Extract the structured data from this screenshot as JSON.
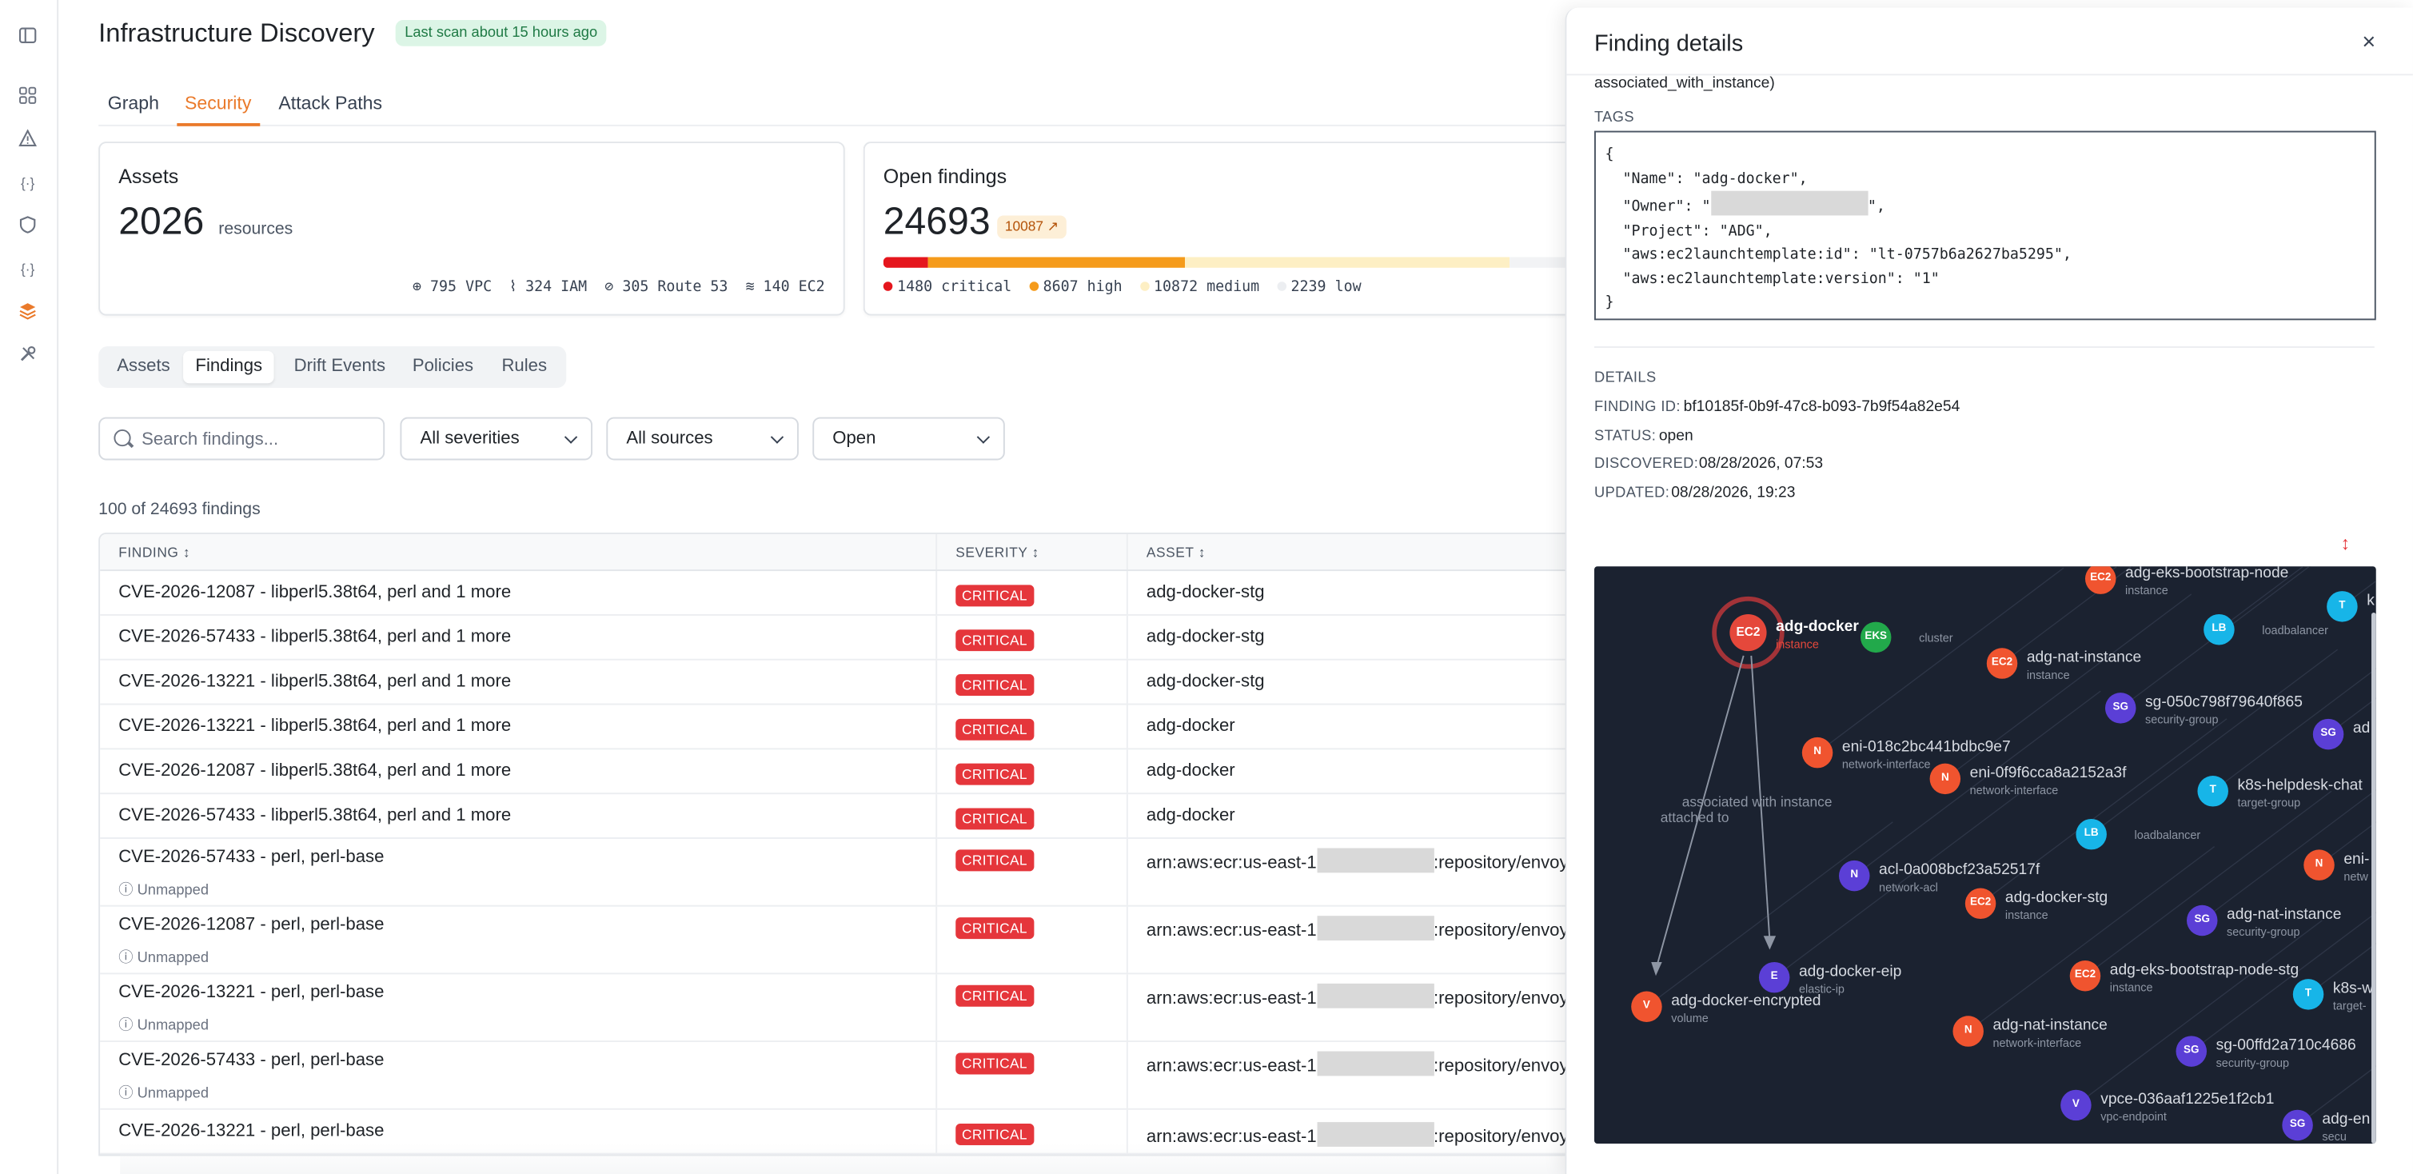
{
  "rail": {
    "icons": [
      "sidebar-toggle-icon",
      "grid-icon",
      "alert-icon",
      "code-icon",
      "shield-icon",
      "code-icon",
      "layers-icon",
      "tools-icon"
    ]
  },
  "header": {
    "title": "Infrastructure Discovery",
    "scan_badge": "Last scan about 15 hours ago"
  },
  "tabs": [
    {
      "label": "Graph"
    },
    {
      "label": "Security"
    },
    {
      "label": "Attack Paths"
    }
  ],
  "assets_card": {
    "title": "Assets",
    "count": "2026",
    "unit": "resources",
    "stats": [
      {
        "icon": "globe-icon",
        "text": "795 VPC"
      },
      {
        "icon": "activity-icon",
        "text": "324 IAM"
      },
      {
        "icon": "route-icon",
        "text": "305 Route 53"
      },
      {
        "icon": "layers-icon",
        "text": "140 EC2"
      }
    ]
  },
  "findings_card": {
    "title": "Open findings",
    "count": "24693",
    "badge": "10087 ↗",
    "critical": "1480 critical",
    "high": "8607 high",
    "medium": "10872 medium",
    "low": "2239 low",
    "bar": {
      "critical": 1480,
      "high": 8607,
      "medium": 10872,
      "low": 2239
    }
  },
  "subtabs": [
    {
      "label": "Assets"
    },
    {
      "label": "Findings"
    },
    {
      "label": "Drift Events"
    },
    {
      "label": "Policies"
    },
    {
      "label": "Rules"
    }
  ],
  "filters": {
    "search_placeholder": "Search findings...",
    "severity": "All severities",
    "source": "All sources",
    "status": "Open"
  },
  "results_count": "100 of 24693 findings",
  "table": {
    "headers": {
      "finding": "FINDING",
      "severity": "SEVERITY",
      "asset": "ASSET"
    },
    "rows": [
      {
        "finding": "CVE-2026-12087 - libperl5.38t64, perl and 1 more",
        "severity": "CRITICAL",
        "asset": "adg-docker-stg"
      },
      {
        "finding": "CVE-2026-57433 - libperl5.38t64, perl and 1 more",
        "severity": "CRITICAL",
        "asset": "adg-docker-stg"
      },
      {
        "finding": "CVE-2026-13221 - libperl5.38t64, perl and 1 more",
        "severity": "CRITICAL",
        "asset": "adg-docker-stg"
      },
      {
        "finding": "CVE-2026-13221 - libperl5.38t64, perl and 1 more",
        "severity": "CRITICAL",
        "asset": "adg-docker"
      },
      {
        "finding": "CVE-2026-12087 - libperl5.38t64, perl and 1 more",
        "severity": "CRITICAL",
        "asset": "adg-docker"
      },
      {
        "finding": "CVE-2026-57433 - libperl5.38t64, perl and 1 more",
        "severity": "CRITICAL",
        "asset": "adg-docker"
      },
      {
        "finding": "CVE-2026-57433 - perl, perl-base",
        "sub": "Unmapped",
        "severity": "CRITICAL",
        "asset_prefix": "arn:aws:ecr:us-east-1",
        "asset_suffix": ":repository/envoy"
      },
      {
        "finding": "CVE-2026-12087 - perl, perl-base",
        "sub": "Unmapped",
        "severity": "CRITICAL",
        "asset_prefix": "arn:aws:ecr:us-east-1",
        "asset_suffix": ":repository/envoy"
      },
      {
        "finding": "CVE-2026-13221 - perl, perl-base",
        "sub": "Unmapped",
        "severity": "CRITICAL",
        "asset_prefix": "arn:aws:ecr:us-east-1",
        "asset_suffix": ":repository/envoy"
      },
      {
        "finding": "CVE-2026-57433 - perl, perl-base",
        "sub": "Unmapped",
        "severity": "CRITICAL",
        "asset_prefix": "arn:aws:ecr:us-east-1",
        "asset_suffix": ":repository/envoy"
      },
      {
        "finding": "CVE-2026-13221 - perl, perl-base",
        "severity": "CRITICAL",
        "asset_prefix": "arn:aws:ecr:us-east-1",
        "asset_suffix": ":repository/envoy"
      }
    ]
  },
  "panel": {
    "title": "Finding details",
    "close": "×",
    "relationship_tail": "associated_with_instance)",
    "tags_label": "TAGS",
    "tags_lines": [
      "{",
      "  \"Name\": \"adg-docker\",",
      "  \"Owner\": \"",
      "  \"Project\": \"ADG\",",
      "  \"aws:ec2launchtemplate:id\": \"lt-0757b6a2627ba5295\",",
      "  \"aws:ec2launchtemplate:version\": \"1\"",
      "}"
    ],
    "owner_suffix": "\",",
    "details_label": "DETAILS",
    "finding_id_label": "FINDING ID:",
    "finding_id": "bf10185f-0b9f-47c8-b093-7b9f54a82e54",
    "status_label": "STATUS:",
    "status": "open",
    "discovered_label": "DISCOVERED:",
    "discovered": "08/28/2026, 07:53",
    "updated_label": "UPDATED:",
    "updated": "08/28/2026, 19:23",
    "resize_glyph": "↕"
  },
  "graph": {
    "edge_labels": [
      "associated with instance",
      "attached to"
    ],
    "nodes": [
      {
        "abbr": "EC2",
        "label": "adg-docker",
        "sub": "instance",
        "color": "#e5483b"
      },
      {
        "abbr": "EKS",
        "label": "",
        "sub": "cluster",
        "color": "#22a94b"
      },
      {
        "abbr": "EC2",
        "label": "adg-eks-bootstrap-node",
        "sub": "instance",
        "color": "#f0542f"
      },
      {
        "abbr": "T",
        "label": "k",
        "sub": "",
        "color": "#17b5e8"
      },
      {
        "abbr": "LB",
        "label": "",
        "sub": "loadbalancer",
        "color": "#17b5e8"
      },
      {
        "abbr": "EC2",
        "label": "adg-nat-instance",
        "sub": "instance",
        "color": "#f0542f"
      },
      {
        "abbr": "SG",
        "label": "sg-050c798f79640f865",
        "sub": "security-group",
        "color": "#5b3fd6"
      },
      {
        "abbr": "SG",
        "label": "ad",
        "sub": "",
        "color": "#5b3fd6"
      },
      {
        "abbr": "N",
        "label": "eni-018c2bc441bdbc9e7",
        "sub": "network-interface",
        "color": "#f0542f"
      },
      {
        "abbr": "N",
        "label": "eni-0f9f6cca8a2152a3f",
        "sub": "network-interface",
        "color": "#f0542f"
      },
      {
        "abbr": "T",
        "label": "k8s-helpdesk-chat",
        "sub": "target-group",
        "color": "#17b5e8"
      },
      {
        "abbr": "LB",
        "label": "",
        "sub": "loadbalancer",
        "color": "#17b5e8"
      },
      {
        "abbr": "N",
        "label": "eni-",
        "sub": "netw",
        "color": "#f0542f"
      },
      {
        "abbr": "N",
        "label": "acl-0a008bcf23a52517f",
        "sub": "network-acl",
        "color": "#5b3fd6"
      },
      {
        "abbr": "EC2",
        "label": "adg-docker-stg",
        "sub": "instance",
        "color": "#f0542f"
      },
      {
        "abbr": "SG",
        "label": "adg-nat-instance",
        "sub": "security-group",
        "color": "#5b3fd6"
      },
      {
        "abbr": "E",
        "label": "adg-docker-eip",
        "sub": "elastic-ip",
        "color": "#5b3fd6"
      },
      {
        "abbr": "EC2",
        "label": "adg-eks-bootstrap-node-stg",
        "sub": "instance",
        "color": "#f0542f"
      },
      {
        "abbr": "T",
        "label": "k8s-w",
        "sub": "target-",
        "color": "#17b5e8"
      },
      {
        "abbr": "V",
        "label": "adg-docker-encrypted",
        "sub": "volume",
        "color": "#f0542f"
      },
      {
        "abbr": "N",
        "label": "adg-nat-instance",
        "sub": "network-interface",
        "color": "#f0542f"
      },
      {
        "abbr": "SG",
        "label": "sg-00ffd2a710c4686",
        "sub": "security-group",
        "color": "#5b3fd6"
      },
      {
        "abbr": "V",
        "label": "vpce-036aaf1225e1f2cb1",
        "sub": "vpc-endpoint",
        "color": "#5b3fd6"
      },
      {
        "abbr": "SG",
        "label": "adg-en",
        "sub": "secu",
        "color": "#5b3fd6"
      }
    ]
  }
}
